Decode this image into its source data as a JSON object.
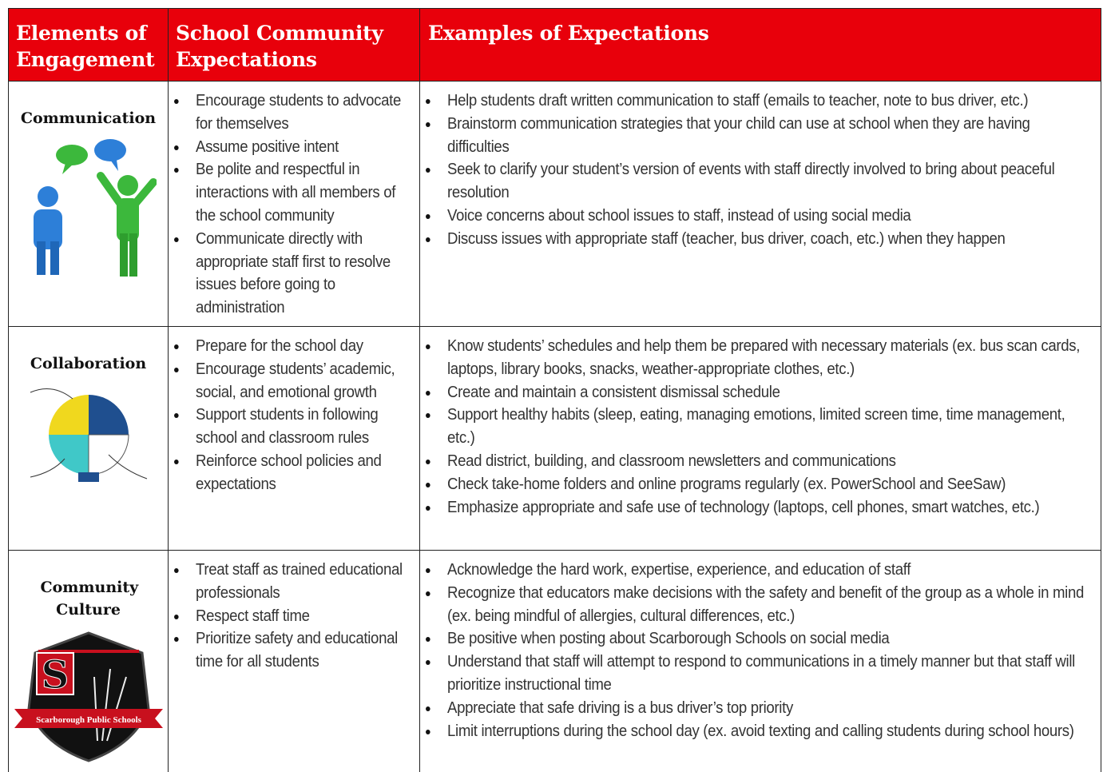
{
  "table": {
    "header": [
      "Elements of Engagement",
      "School Community Expectations",
      "Examples of Expectations"
    ],
    "rows": [
      {
        "element": "Communication",
        "expectations": [
          "Encourage students to advocate for themselves",
          "Assume positive intent",
          "Be polite and respectful in interactions with all members of the school community",
          "Communicate directly with appropriate staff first to resolve issues before going to administration"
        ],
        "examples": [
          "Help students draft written communication to staff (emails to teacher, note to bus driver, etc.)",
          "Brainstorm communication strategies that your child can use at school when they are having difficulties",
          "Seek to clarify your student’s version of events with staff directly involved to bring about peaceful resolution",
          "Voice concerns about school issues to staff, instead of using social media",
          "Discuss issues with appropriate staff  (teacher, bus driver, coach, etc.) when they happen"
        ]
      },
      {
        "element": "Collaboration",
        "expectations": [
          "Prepare for the school day",
          "Encourage students’ academic, social, and emotional growth",
          "Support students in following school and classroom rules",
          "Reinforce school policies and expectations"
        ],
        "examples": [
          "Know students’ schedules and help them be prepared with necessary materials (ex. bus scan cards, laptops, library books, snacks, weather-appropriate clothes, etc.)",
          "Create and maintain a consistent dismissal schedule",
          "Support healthy habits (sleep, eating, managing emotions, limited screen time, time management, etc.)",
          "Read district, building, and classroom newsletters and communications",
          "Check take-home folders and online programs regularly (ex. PowerSchool and SeeSaw)",
          "Emphasize appropriate and safe use of technology (laptops, cell phones, smart watches, etc.)"
        ]
      },
      {
        "element": "Community Culture",
        "logo": {
          "letter": "S",
          "banner": "Scarborough Public Schools"
        },
        "expectations": [
          "Treat staff as trained educational professionals",
          "Respect staff time",
          "Prioritize safety and educational time for all students"
        ],
        "examples": [
          "Acknowledge the hard work, expertise, experience, and education of staff",
          "Recognize that educators make decisions with the safety and benefit of the group as a whole in mind (ex. being mindful of allergies, cultural differences, etc.)",
          "Be positive when posting about Scarborough Schools on social media",
          "Understand that staff will attempt to respond to communications in a timely manner but that staff will prioritize instructional time",
          "Appreciate that safe driving is a bus driver’s top priority",
          "Limit interruptions during the school day (ex. avoid texting and calling students during school hours)"
        ]
      }
    ]
  }
}
